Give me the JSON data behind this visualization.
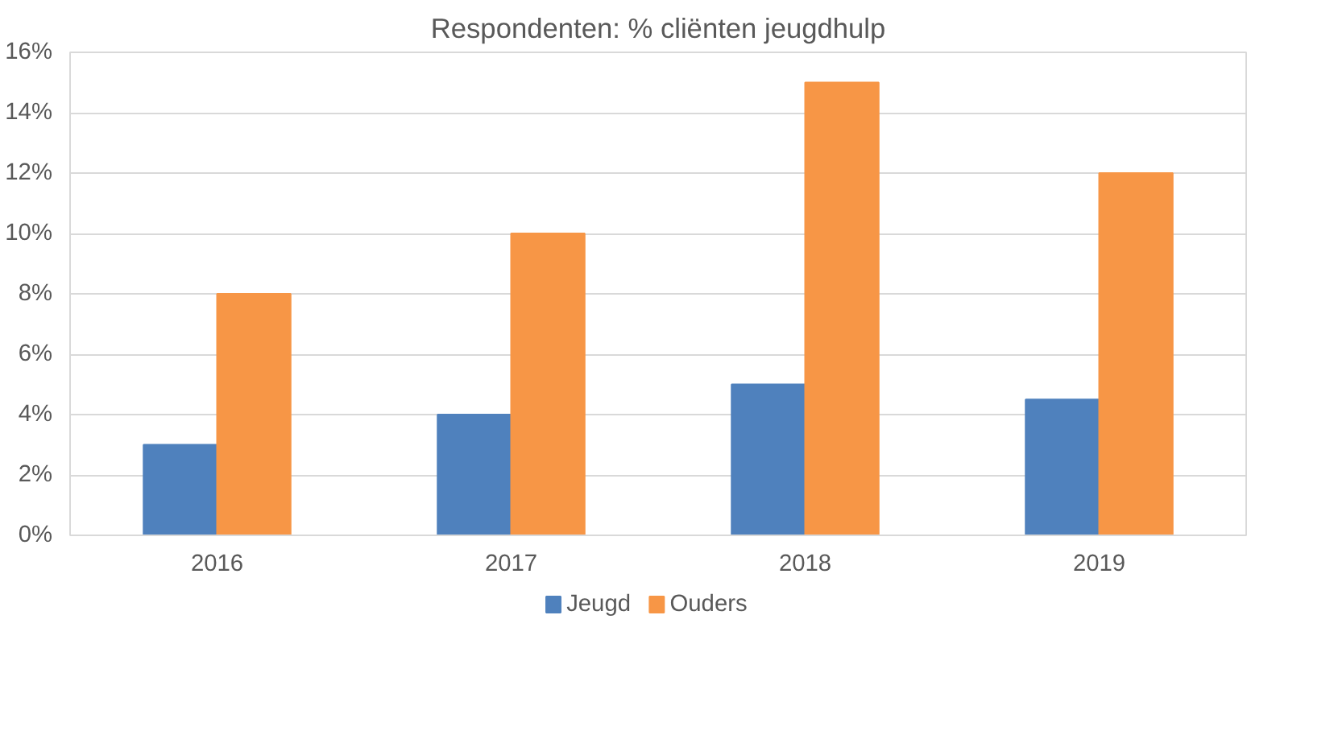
{
  "chart_data": {
    "type": "bar",
    "title": "Respondenten: % cliënten jeugdhulp",
    "categories": [
      "2016",
      "2017",
      "2018",
      "2019"
    ],
    "series": [
      {
        "name": "Jeugd",
        "color": "#4f81bd",
        "values": [
          3,
          4,
          5,
          4.5
        ]
      },
      {
        "name": "Ouders",
        "color": "#f79646",
        "values": [
          8,
          10,
          15,
          12
        ]
      }
    ],
    "ylim": [
      0,
      16
    ],
    "yticks": [
      {
        "value": 0,
        "label": "0%"
      },
      {
        "value": 2,
        "label": "2%"
      },
      {
        "value": 4,
        "label": "4%"
      },
      {
        "value": 6,
        "label": "6%"
      },
      {
        "value": 8,
        "label": "8%"
      },
      {
        "value": 10,
        "label": "10%"
      },
      {
        "value": 12,
        "label": "12%"
      },
      {
        "value": 14,
        "label": "14%"
      },
      {
        "value": 16,
        "label": "16%"
      }
    ],
    "grid": "y",
    "legend": "bottom"
  }
}
